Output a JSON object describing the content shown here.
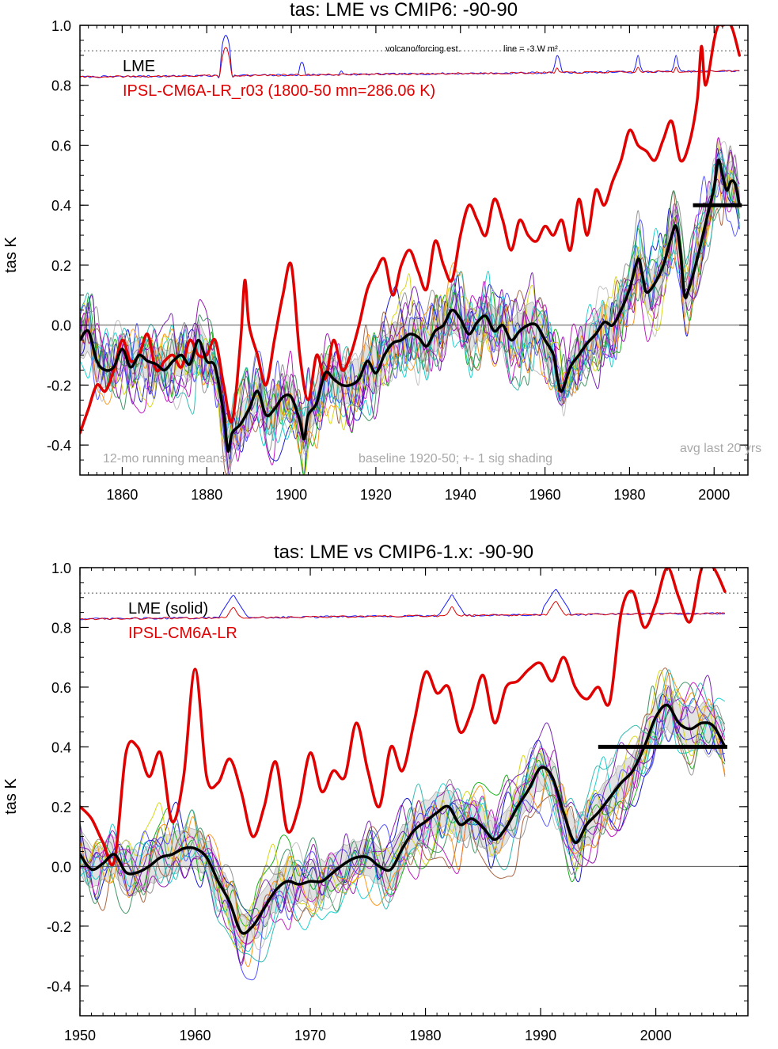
{
  "chart_data": [
    {
      "type": "line",
      "title": "tas: LME vs CMIP6: -90-90",
      "ylabel": "tas K",
      "xlabel": "",
      "xlim": [
        1850,
        2008
      ],
      "ylim": [
        -0.5,
        1.0
      ],
      "xticks": [
        1860,
        1880,
        1900,
        1920,
        1940,
        1960,
        1980,
        2000
      ],
      "xtick_labels": [
        "1860",
        "1880",
        "1900",
        "1920",
        "1940",
        "1960",
        "1980",
        "2000"
      ],
      "yticks": [
        -0.4,
        -0.2,
        0.0,
        0.2,
        0.4,
        0.6,
        0.8,
        1.0
      ],
      "ytick_labels": [
        "-0.4",
        "-0.2",
        "0.0",
        "0.2",
        "0.4",
        "0.6",
        "0.8",
        "1.0"
      ],
      "grid": false,
      "zero_line": 0.0,
      "legend": [
        {
          "text": "LME",
          "color": "#000000"
        },
        {
          "text": "IPSL-CM6A-LR_r03 (1800-50 mn=286.06 K)",
          "color": "#e00000"
        }
      ],
      "annotations": {
        "volcano_label": "volcano/forcing est.",
        "line_label": "line = -3 W m²",
        "running_mean": "12-mo running means",
        "baseline": "baseline 1920-50; +- 1 sig shading",
        "avg_last": "avg last 20 yrs"
      },
      "reference_dotted_y": 0.915,
      "avg_last_20yrs": {
        "x": [
          1995,
          2006
        ],
        "y": 0.4
      },
      "series": [
        {
          "name": "LME",
          "color": "#000000",
          "x": [
            1850,
            1852,
            1854,
            1856,
            1858,
            1860,
            1862,
            1864,
            1866,
            1868,
            1870,
            1872,
            1874,
            1876,
            1878,
            1880,
            1882,
            1884,
            1885,
            1886,
            1888,
            1890,
            1892,
            1894,
            1896,
            1898,
            1900,
            1902,
            1903,
            1904,
            1906,
            1908,
            1910,
            1912,
            1914,
            1916,
            1918,
            1920,
            1922,
            1924,
            1926,
            1928,
            1930,
            1932,
            1934,
            1936,
            1938,
            1940,
            1942,
            1944,
            1946,
            1948,
            1950,
            1952,
            1954,
            1956,
            1958,
            1960,
            1962,
            1963,
            1964,
            1966,
            1968,
            1970,
            1972,
            1974,
            1976,
            1978,
            1980,
            1982,
            1983,
            1984,
            1986,
            1988,
            1990,
            1991,
            1992,
            1993,
            1994,
            1996,
            1998,
            2000,
            2001,
            2002,
            2003,
            2004,
            2005,
            2006
          ],
          "y": [
            -0.05,
            -0.02,
            -0.12,
            -0.15,
            -0.14,
            -0.08,
            -0.14,
            -0.1,
            -0.12,
            -0.13,
            -0.15,
            -0.12,
            -0.1,
            -0.13,
            -0.05,
            -0.12,
            -0.14,
            -0.3,
            -0.42,
            -0.36,
            -0.33,
            -0.28,
            -0.22,
            -0.3,
            -0.28,
            -0.24,
            -0.24,
            -0.32,
            -0.38,
            -0.3,
            -0.26,
            -0.16,
            -0.18,
            -0.2,
            -0.2,
            -0.18,
            -0.12,
            -0.16,
            -0.1,
            -0.06,
            -0.05,
            -0.03,
            -0.04,
            -0.07,
            -0.02,
            0.0,
            0.05,
            0.02,
            -0.03,
            0.01,
            0.03,
            -0.02,
            0.0,
            -0.05,
            -0.02,
            0.0,
            0.0,
            -0.05,
            -0.1,
            -0.18,
            -0.22,
            -0.14,
            -0.1,
            -0.06,
            -0.03,
            0.01,
            0.0,
            0.05,
            0.12,
            0.22,
            0.17,
            0.11,
            0.14,
            0.2,
            0.3,
            0.33,
            0.25,
            0.1,
            0.12,
            0.22,
            0.34,
            0.46,
            0.55,
            0.5,
            0.45,
            0.48,
            0.47,
            0.4
          ]
        },
        {
          "name": "IPSL-CM6A-LR_r03 (1800-50 mn=286.06 K)",
          "color": "#e00000",
          "x": [
            1850,
            1852,
            1854,
            1856,
            1858,
            1860,
            1862,
            1864,
            1866,
            1868,
            1870,
            1872,
            1874,
            1876,
            1878,
            1880,
            1882,
            1884,
            1886,
            1888,
            1889,
            1890,
            1892,
            1894,
            1896,
            1898,
            1900,
            1902,
            1904,
            1906,
            1908,
            1910,
            1912,
            1914,
            1916,
            1918,
            1920,
            1922,
            1924,
            1926,
            1928,
            1930,
            1932,
            1934,
            1936,
            1938,
            1940,
            1942,
            1944,
            1946,
            1948,
            1950,
            1952,
            1954,
            1956,
            1958,
            1960,
            1962,
            1964,
            1966,
            1968,
            1970,
            1972,
            1974,
            1976,
            1978,
            1980,
            1982,
            1984,
            1986,
            1988,
            1990,
            1992,
            1994,
            1996,
            1997,
            1998,
            2000,
            2001,
            2002,
            2004,
            2006
          ],
          "y": [
            -0.36,
            -0.28,
            -0.2,
            -0.22,
            -0.15,
            -0.05,
            -0.12,
            -0.1,
            -0.03,
            -0.15,
            -0.12,
            -0.1,
            -0.14,
            -0.05,
            -0.1,
            -0.1,
            -0.05,
            -0.2,
            -0.32,
            -0.05,
            0.15,
            0.0,
            -0.1,
            -0.2,
            -0.05,
            0.1,
            0.2,
            -0.1,
            -0.25,
            -0.1,
            -0.18,
            -0.05,
            -0.15,
            -0.1,
            0.0,
            0.12,
            0.18,
            0.22,
            0.1,
            0.2,
            0.25,
            0.18,
            0.12,
            0.28,
            0.2,
            0.15,
            0.3,
            0.4,
            0.35,
            0.3,
            0.42,
            0.35,
            0.25,
            0.35,
            0.3,
            0.28,
            0.33,
            0.3,
            0.35,
            0.25,
            0.42,
            0.3,
            0.45,
            0.4,
            0.48,
            0.55,
            0.65,
            0.6,
            0.58,
            0.55,
            0.62,
            0.68,
            0.55,
            0.6,
            0.75,
            0.93,
            0.8,
            0.95,
            1.0,
            1.0,
            1.0,
            0.9
          ]
        }
      ]
    },
    {
      "type": "line",
      "title": "tas: LME vs CMIP6-1.x: -90-90",
      "ylabel": "tas K",
      "xlabel": "",
      "xlim": [
        1950,
        2008
      ],
      "ylim": [
        -0.5,
        1.0
      ],
      "xticks": [
        1950,
        1960,
        1970,
        1980,
        1990,
        2000
      ],
      "xtick_labels": [
        "1950",
        "1960",
        "1970",
        "1980",
        "1990",
        "2000"
      ],
      "yticks": [
        -0.4,
        -0.2,
        0.0,
        0.2,
        0.4,
        0.6,
        0.8,
        1.0
      ],
      "ytick_labels": [
        "-0.4",
        "-0.2",
        "0.0",
        "0.2",
        "0.4",
        "0.6",
        "0.8",
        "1.0"
      ],
      "grid": false,
      "zero_line": 0.0,
      "legend": [
        {
          "text": "LME (solid)",
          "color": "#000000"
        },
        {
          "text": "IPSL-CM6A-LR",
          "color": "#e00000"
        }
      ],
      "reference_dotted_y": 0.915,
      "avg_last_20yrs": {
        "x": [
          1995,
          2006
        ],
        "y": 0.4
      },
      "series": [
        {
          "name": "LME (solid)",
          "color": "#000000",
          "x": [
            1950,
            1951,
            1952,
            1953,
            1954,
            1955,
            1956,
            1957,
            1958,
            1959,
            1960,
            1961,
            1962,
            1963,
            1964,
            1965,
            1966,
            1967,
            1968,
            1969,
            1970,
            1971,
            1972,
            1973,
            1974,
            1975,
            1976,
            1977,
            1978,
            1979,
            1980,
            1981,
            1982,
            1983,
            1984,
            1985,
            1986,
            1987,
            1988,
            1989,
            1990,
            1991,
            1992,
            1993,
            1994,
            1995,
            1996,
            1997,
            1998,
            1999,
            2000,
            2001,
            2002,
            2003,
            2004,
            2005,
            2006
          ],
          "y": [
            0.04,
            -0.01,
            0.01,
            0.04,
            -0.02,
            -0.02,
            0.0,
            0.03,
            0.04,
            0.06,
            0.06,
            0.03,
            -0.05,
            -0.12,
            -0.22,
            -0.2,
            -0.14,
            -0.08,
            -0.05,
            -0.06,
            -0.05,
            -0.05,
            -0.02,
            0.01,
            0.03,
            0.03,
            0.0,
            -0.01,
            0.06,
            0.12,
            0.15,
            0.18,
            0.2,
            0.14,
            0.16,
            0.13,
            0.09,
            0.13,
            0.2,
            0.26,
            0.33,
            0.3,
            0.18,
            0.08,
            0.14,
            0.18,
            0.23,
            0.28,
            0.32,
            0.4,
            0.5,
            0.54,
            0.48,
            0.46,
            0.48,
            0.47,
            0.4
          ]
        },
        {
          "name": "IPSL-CM6A-LR",
          "color": "#e00000",
          "x": [
            1950,
            1951,
            1952,
            1953,
            1954,
            1955,
            1956,
            1957,
            1958,
            1959,
            1960,
            1961,
            1962,
            1963,
            1964,
            1965,
            1966,
            1967,
            1968,
            1969,
            1970,
            1971,
            1972,
            1973,
            1974,
            1975,
            1976,
            1977,
            1978,
            1979,
            1980,
            1981,
            1982,
            1983,
            1984,
            1985,
            1986,
            1987,
            1988,
            1989,
            1990,
            1991,
            1992,
            1993,
            1994,
            1995,
            1996,
            1997,
            1998,
            1999,
            2000,
            2001,
            2002,
            2003,
            2004,
            2005,
            2006
          ],
          "y": [
            0.2,
            0.16,
            0.08,
            0.02,
            0.38,
            0.4,
            0.3,
            0.38,
            0.15,
            0.3,
            0.66,
            0.3,
            0.28,
            0.36,
            0.25,
            0.1,
            0.2,
            0.35,
            0.12,
            0.2,
            0.38,
            0.25,
            0.32,
            0.3,
            0.48,
            0.32,
            0.2,
            0.4,
            0.32,
            0.48,
            0.65,
            0.58,
            0.6,
            0.45,
            0.52,
            0.64,
            0.48,
            0.6,
            0.62,
            0.66,
            0.68,
            0.62,
            0.7,
            0.6,
            0.56,
            0.6,
            0.55,
            0.85,
            0.92,
            0.8,
            0.88,
            1.0,
            0.9,
            0.82,
            1.0,
            1.0,
            0.92
          ]
        }
      ]
    }
  ]
}
